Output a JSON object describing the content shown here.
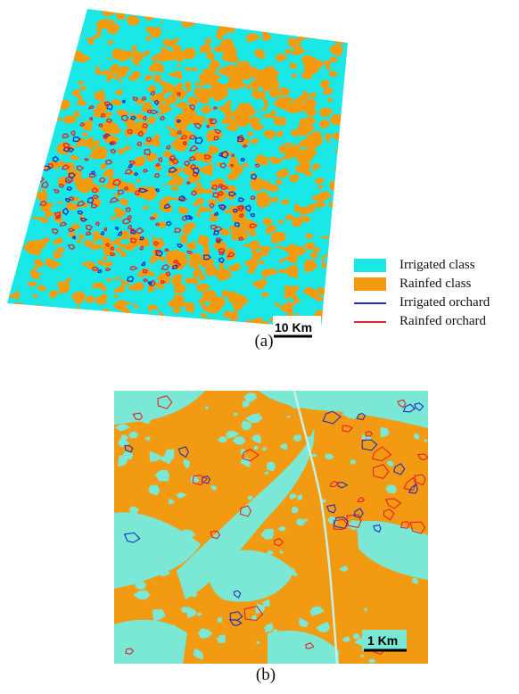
{
  "colors": {
    "irrigated": "#19e8e6",
    "rainfed": "#f49a0e",
    "irrigated_orchard": "#1f2fc0",
    "rainfed_orchard": "#e4222a",
    "panel_b_irrigated": "#7be8d6",
    "panel_b_rainfed": "#f29a12",
    "road": "#c8f0e6"
  },
  "legend": {
    "items": [
      {
        "label": "Irrigated class",
        "type": "fill",
        "color_key": "irrigated"
      },
      {
        "label": "Rainfed class",
        "type": "fill",
        "color_key": "rainfed"
      },
      {
        "label": "Irrigated orchard",
        "type": "line",
        "color_key": "irrigated_orchard"
      },
      {
        "label": "Rainfed orchard",
        "type": "line",
        "color_key": "rainfed_orchard"
      }
    ]
  },
  "panel_a": {
    "caption": "(a)",
    "scale_label": "10 Km"
  },
  "panel_b": {
    "caption": "(b)",
    "scale_label": "1 Km"
  }
}
